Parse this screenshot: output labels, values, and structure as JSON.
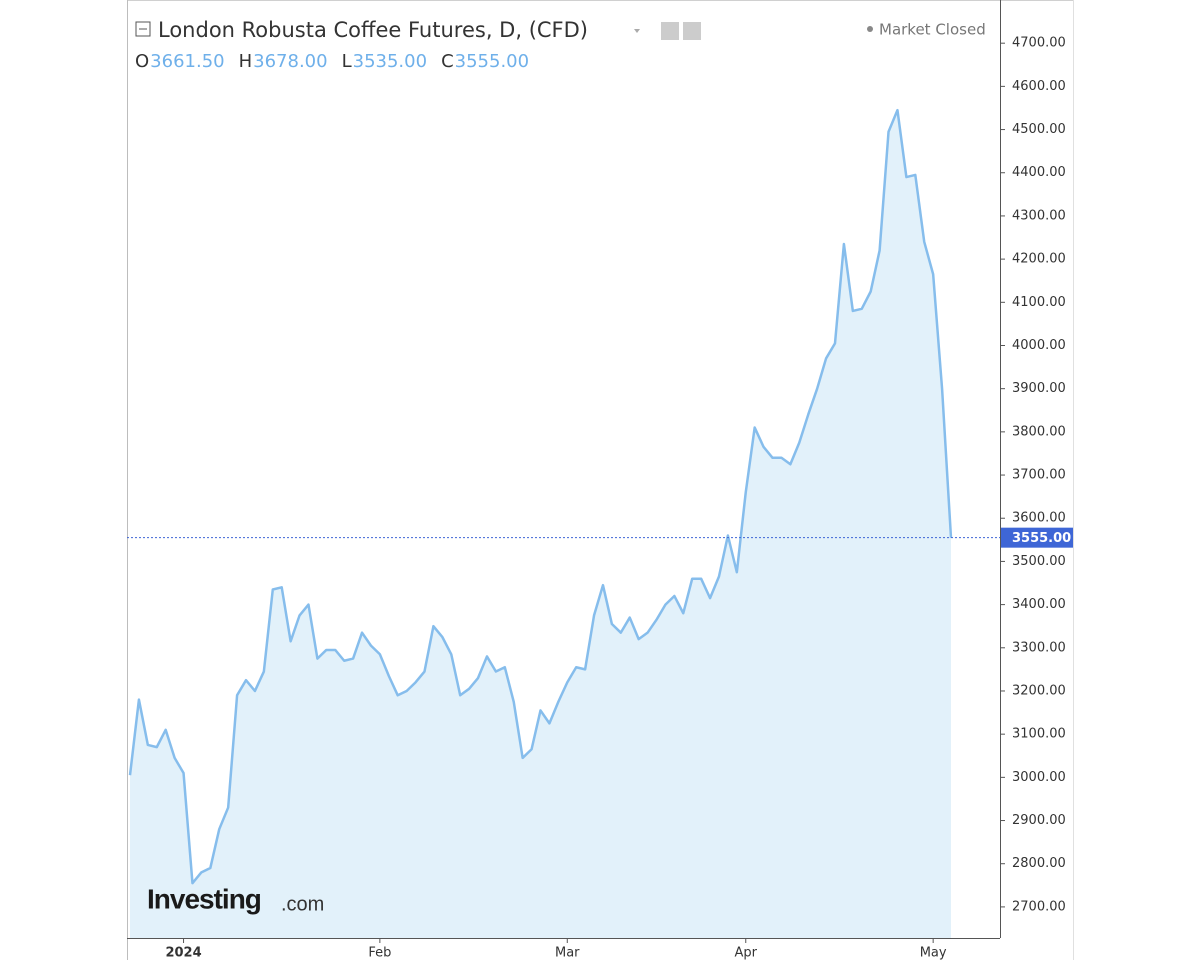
{
  "chart_data": {
    "type": "area",
    "title": "London Robusta Coffee Futures, D, (CFD)",
    "status": "Market Closed",
    "ohlc": [
      {
        "key": "O",
        "value": "3661.50"
      },
      {
        "key": "H",
        "value": "3678.00"
      },
      {
        "key": "L",
        "value": "3535.00"
      },
      {
        "key": "C",
        "value": "3555.00"
      }
    ],
    "last_price": "3555.00",
    "watermark": [
      "Investing",
      ".com"
    ],
    "color": "#86bdec",
    "fill": "#e2f1fa",
    "categories": [
      null,
      null,
      null,
      null,
      null,
      null,
      "2024",
      null,
      null,
      null,
      null,
      null,
      null,
      null,
      null,
      null,
      null,
      null,
      null,
      null,
      null,
      null,
      null,
      null,
      null,
      null,
      null,
      null,
      "Feb",
      null,
      null,
      null,
      null,
      null,
      null,
      null,
      null,
      null,
      null,
      null,
      null,
      null,
      null,
      null,
      null,
      null,
      null,
      null,
      null,
      "Mar",
      null,
      null,
      null,
      null,
      null,
      null,
      null,
      null,
      null,
      null,
      null,
      null,
      null,
      null,
      null,
      null,
      null,
      null,
      null,
      "Apr",
      null,
      null,
      null,
      null,
      null,
      null,
      null,
      null,
      null,
      null,
      null,
      null,
      null,
      null,
      null,
      null,
      null,
      null,
      null,
      null,
      "May",
      null,
      null
    ],
    "values": [
      3005,
      3180,
      3075,
      3070,
      3110,
      3045,
      3010,
      2755,
      2780,
      2790,
      2880,
      2930,
      3190,
      3225,
      3200,
      3245,
      3435,
      3440,
      3315,
      3375,
      3400,
      3275,
      3295,
      3295,
      3270,
      3275,
      3335,
      3305,
      3285,
      3235,
      3190,
      3200,
      3220,
      3245,
      3350,
      3325,
      3285,
      3190,
      3205,
      3230,
      3280,
      3245,
      3255,
      3175,
      3045,
      3065,
      3155,
      3125,
      3175,
      3220,
      3255,
      3250,
      3375,
      3445,
      3355,
      3335,
      3370,
      3320,
      3335,
      3365,
      3400,
      3420,
      3380,
      3460,
      3460,
      3415,
      3465,
      3560,
      3475,
      3660,
      3810,
      3765,
      3740,
      3740,
      3725,
      3775,
      3840,
      3900,
      3970,
      4005,
      4235,
      4080,
      4085,
      4125,
      4220,
      4495,
      4545,
      4390,
      4395,
      4240,
      4165,
      3900,
      3555
    ],
    "ylim": [
      2628,
      4800
    ],
    "yticks": [
      {
        "value": 2700,
        "label": "2700.00"
      },
      {
        "value": 2800,
        "label": "2800.00"
      },
      {
        "value": 2900,
        "label": "2900.00"
      },
      {
        "value": 3000,
        "label": "3000.00"
      },
      {
        "value": 3100,
        "label": "3100.00"
      },
      {
        "value": 3200,
        "label": "3200.00"
      },
      {
        "value": 3300,
        "label": "3300.00"
      },
      {
        "value": 3400,
        "label": "3400.00"
      },
      {
        "value": 3500,
        "label": "3500.00"
      },
      {
        "value": 3600,
        "label": "3600.00"
      },
      {
        "value": 3700,
        "label": "3700.00"
      },
      {
        "value": 3800,
        "label": "3800.00"
      },
      {
        "value": 3900,
        "label": "3900.00"
      },
      {
        "value": 4000,
        "label": "4000.00"
      },
      {
        "value": 4100,
        "label": "4100.00"
      },
      {
        "value": 4200,
        "label": "4200.00"
      },
      {
        "value": 4300,
        "label": "4300.00"
      },
      {
        "value": 4400,
        "label": "4400.00"
      },
      {
        "value": 4500,
        "label": "4500.00"
      },
      {
        "value": 4600,
        "label": "4600.00"
      },
      {
        "value": 4700,
        "label": "4700.00"
      }
    ]
  }
}
